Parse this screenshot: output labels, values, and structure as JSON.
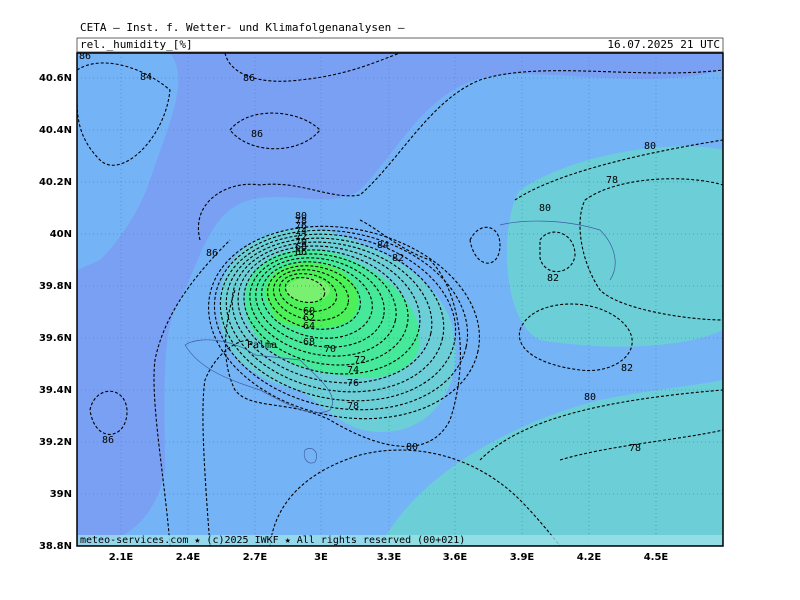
{
  "header": {
    "title": "CETA – Inst. f. Wetter- und Klimafolgenanalysen –",
    "field": "rel._humidity_[%]",
    "valid": "16.07.2025 21 UTC"
  },
  "footer": "meteo-services.com ★ (c)2025 IWKF ★ All rights reserved (00+021)",
  "lat_labels": [
    "40.6N",
    "40.4N",
    "40.2N",
    "40N",
    "39.8N",
    "39.6N",
    "39.4N",
    "39.2N",
    "39N",
    "38.8N"
  ],
  "lon_labels": [
    "2.1E",
    "2.4E",
    "2.7E",
    "3E",
    "3.3E",
    "3.6E",
    "3.9E",
    "4.2E",
    "4.5E"
  ],
  "place": "Palma",
  "contour_labels": [
    "86",
    "84",
    "86",
    "86",
    "80",
    "78",
    "80",
    "86",
    "84",
    "82",
    "82",
    "82",
    "80",
    "78",
    "80",
    "78",
    "76",
    "74",
    "72",
    "70",
    "68",
    "64",
    "62",
    "60",
    "86",
    "80",
    "78",
    "76",
    "74",
    "72",
    "70",
    "68",
    "66"
  ]
}
